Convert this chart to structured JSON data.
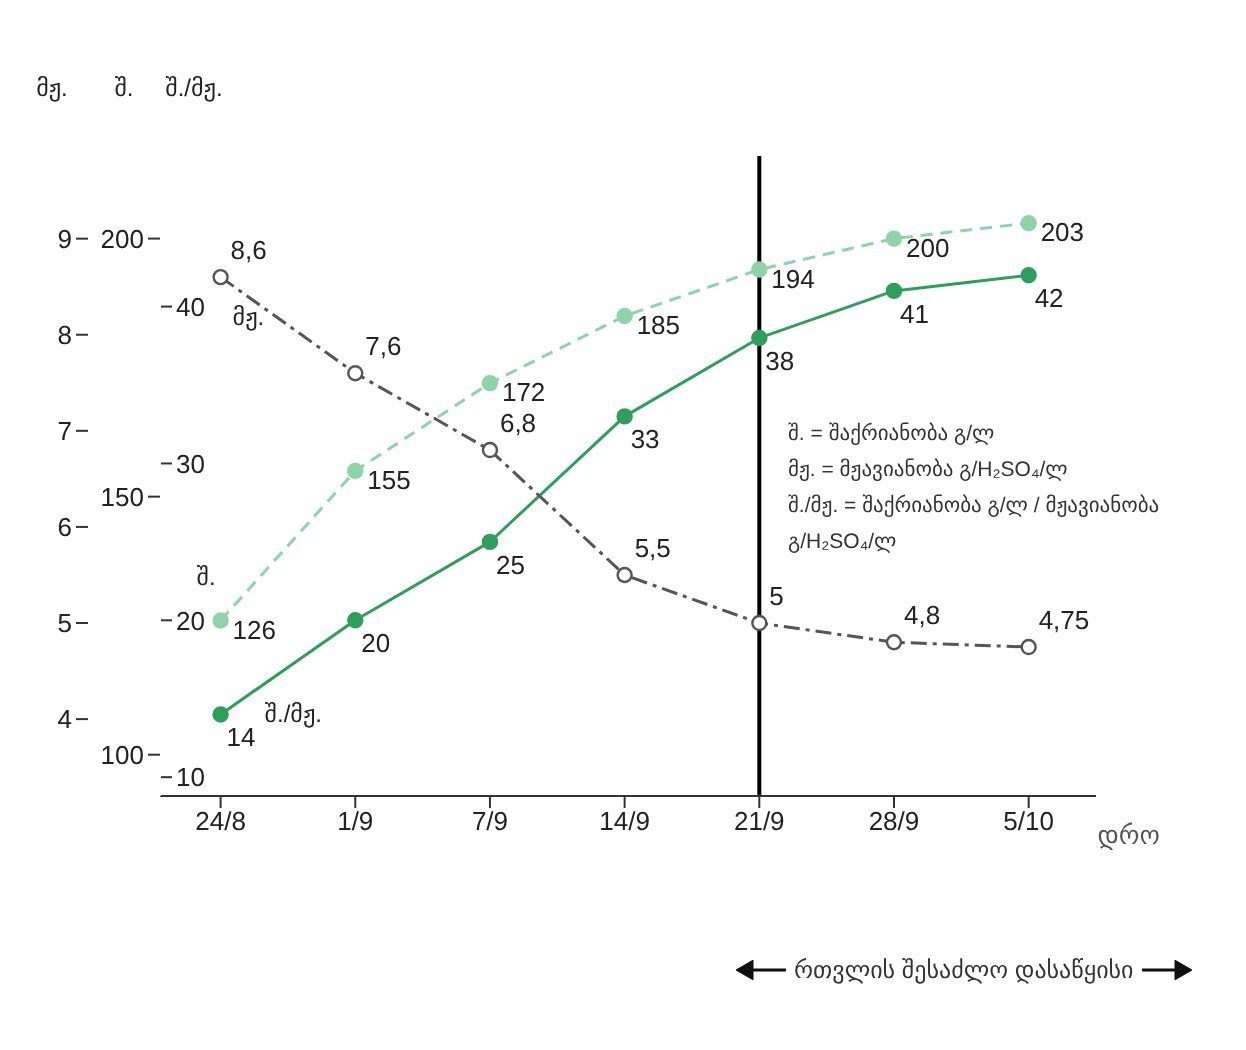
{
  "chart_data": {
    "type": "line",
    "xlabel": "დრო",
    "ylabel": "შ./მჟ.",
    "y2label": "შ.",
    "y3label": "მჟ.",
    "categories": [
      "24/8",
      "1/9",
      "7/9",
      "14/9",
      "21/9",
      "28/9",
      "5/10"
    ],
    "series": [
      {
        "name": "შ.",
        "color": "#8fd4a8",
        "axis": "y2",
        "line_style": "dashed",
        "values": [
          126,
          155,
          172,
          185,
          194,
          200,
          203
        ],
        "value_labels": [
          "126",
          "155",
          "172",
          "185",
          "194",
          "200",
          "203"
        ]
      },
      {
        "name": "შ./მჟ.",
        "color": "#2e9e5b",
        "axis": "y",
        "line_style": "solid",
        "values": [
          14,
          20,
          25,
          33,
          38,
          41,
          42
        ],
        "value_labels": [
          "14",
          "20",
          "25",
          "33",
          "38",
          "41",
          "42"
        ]
      },
      {
        "name": "მჟ.",
        "color": "#555555",
        "axis": "y3",
        "line_style": "dashed",
        "values": [
          8.6,
          7.6,
          6.8,
          5.5,
          5,
          4.8,
          4.75
        ],
        "value_labels": [
          "8,6",
          "7,6",
          "6,8",
          "5,5",
          "5",
          "4,8",
          "4,75"
        ]
      }
    ],
    "ylim": [
      8.8,
      49.6
    ],
    "yticks": [
      10,
      20,
      30,
      40
    ],
    "y2lim": [
      92,
      216
    ],
    "y2ticks": [
      100,
      150,
      200
    ],
    "y3lim": [
      3.2,
      9.86
    ],
    "y3ticks": [
      4,
      5,
      6,
      7,
      8,
      9
    ],
    "ref_lines": [
      {
        "axis": "x",
        "value": "21/9",
        "color": "#000000"
      }
    ],
    "annotations": [
      "შ. = შაქრიანობა გ/ლ",
      "მჟ. = მჟავიანობა გ/H₂SO₄/ლ",
      "შ./მჟ. = შაქრიანობა გ/ლ / მჟავიანობა გ/H₂SO₄/ლ",
      "რთვლის შესაძლო დასაწყისი"
    ],
    "marker": "circle",
    "grid": false,
    "legend": false
  }
}
